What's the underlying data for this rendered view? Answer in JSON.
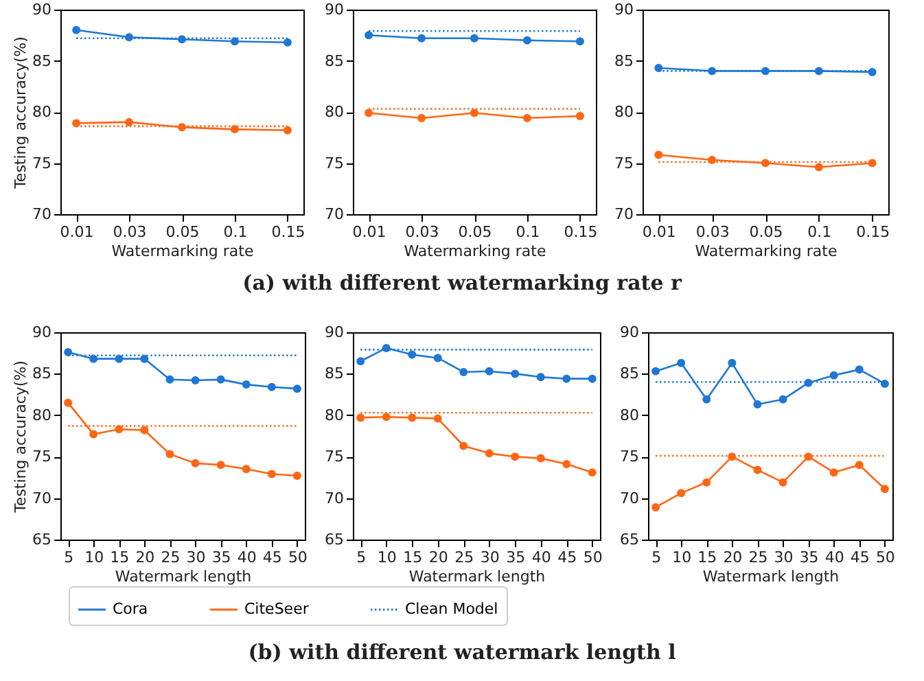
{
  "chart_data": [
    {
      "type": "line",
      "categories": [
        "0.01",
        "0.03",
        "0.05",
        "0.1",
        "0.15"
      ],
      "xlabel": "Watermarking rate",
      "ylabel": "Testing accuracy(%)",
      "ylim": [
        70,
        90
      ],
      "yticks": [
        70,
        75,
        80,
        85,
        90
      ],
      "legend": false,
      "annotations": [
        "(a) with different watermarking rate r"
      ],
      "series": [
        {
          "color": "#1f77d4",
          "marker": "circle",
          "line_style": "solid",
          "values": [
            88.0,
            87.3,
            87.1,
            86.9,
            86.8
          ]
        },
        {
          "color": "#ff6614",
          "marker": "circle",
          "line_style": "solid",
          "values": [
            78.9,
            79.0,
            78.5,
            78.3,
            78.2
          ]
        },
        {
          "color": "#1f77d4",
          "marker": "none",
          "line_style": "dotted",
          "values": [
            87.2,
            87.2,
            87.2,
            87.2,
            87.2
          ]
        },
        {
          "color": "#ff6614",
          "marker": "none",
          "line_style": "dotted",
          "values": [
            78.6,
            78.6,
            78.6,
            78.6,
            78.6
          ]
        }
      ]
    },
    {
      "type": "line",
      "categories": [
        "0.01",
        "0.03",
        "0.05",
        "0.1",
        "0.15"
      ],
      "xlabel": "Watermarking rate",
      "ylim": [
        70,
        90
      ],
      "yticks": [
        70,
        75,
        80,
        85,
        90
      ],
      "legend": false,
      "series": [
        {
          "color": "#1f77d4",
          "marker": "circle",
          "line_style": "solid",
          "values": [
            87.5,
            87.2,
            87.2,
            87.0,
            86.9
          ]
        },
        {
          "color": "#ff6614",
          "marker": "circle",
          "line_style": "solid",
          "values": [
            79.9,
            79.4,
            79.9,
            79.4,
            79.6
          ]
        },
        {
          "color": "#1f77d4",
          "marker": "none",
          "line_style": "dotted",
          "values": [
            87.9,
            87.9,
            87.9,
            87.9,
            87.9
          ]
        },
        {
          "color": "#ff6614",
          "marker": "none",
          "line_style": "dotted",
          "values": [
            80.3,
            80.3,
            80.3,
            80.3,
            80.3
          ]
        }
      ]
    },
    {
      "type": "line",
      "categories": [
        "0.01",
        "0.03",
        "0.05",
        "0.1",
        "0.15"
      ],
      "xlabel": "Watermarking rate",
      "ylim": [
        70,
        90
      ],
      "yticks": [
        70,
        75,
        80,
        85,
        90
      ],
      "legend": false,
      "series": [
        {
          "color": "#1f77d4",
          "marker": "circle",
          "line_style": "solid",
          "values": [
            84.3,
            84.0,
            84.0,
            84.0,
            83.9
          ]
        },
        {
          "color": "#ff6614",
          "marker": "circle",
          "line_style": "solid",
          "values": [
            75.8,
            75.3,
            75.0,
            74.6,
            75.0
          ]
        },
        {
          "color": "#1f77d4",
          "marker": "none",
          "line_style": "dotted",
          "values": [
            84.0,
            84.0,
            84.0,
            84.0,
            84.0
          ]
        },
        {
          "color": "#ff6614",
          "marker": "none",
          "line_style": "dotted",
          "values": [
            75.1,
            75.1,
            75.1,
            75.1,
            75.1
          ]
        }
      ]
    },
    {
      "type": "line",
      "categories": [
        "5",
        "10",
        "15",
        "20",
        "25",
        "30",
        "35",
        "40",
        "45",
        "50"
      ],
      "xlabel": "Watermark length",
      "ylabel": "Testing accuracy(%)",
      "ylim": [
        65,
        90
      ],
      "yticks": [
        65,
        70,
        75,
        80,
        85,
        90
      ],
      "legend": "bottom",
      "annotations": [
        "(b) with different watermark length l"
      ],
      "series": [
        {
          "name": "Cora",
          "color": "#1f77d4",
          "marker": "circle",
          "line_style": "solid",
          "values": [
            87.6,
            86.8,
            86.8,
            86.8,
            84.3,
            84.2,
            84.3,
            83.7,
            83.4,
            83.2
          ]
        },
        {
          "name": "CiteSeer",
          "color": "#ff6614",
          "marker": "circle",
          "line_style": "solid",
          "values": [
            81.5,
            77.7,
            78.3,
            78.2,
            75.3,
            74.2,
            74.0,
            73.5,
            72.9,
            72.7
          ]
        },
        {
          "name": "Clean Model",
          "color": "#1f77d4",
          "marker": "none",
          "line_style": "dotted",
          "values": [
            87.2,
            87.2,
            87.2,
            87.2,
            87.2,
            87.2,
            87.2,
            87.2,
            87.2,
            87.2
          ]
        },
        {
          "color": "#ff6614",
          "marker": "none",
          "line_style": "dotted",
          "values": [
            78.7,
            78.7,
            78.7,
            78.7,
            78.7,
            78.7,
            78.7,
            78.7,
            78.7,
            78.7
          ]
        }
      ]
    },
    {
      "type": "line",
      "categories": [
        "5",
        "10",
        "15",
        "20",
        "25",
        "30",
        "35",
        "40",
        "45",
        "50"
      ],
      "xlabel": "Watermark length",
      "ylim": [
        65,
        90
      ],
      "yticks": [
        65,
        70,
        75,
        80,
        85,
        90
      ],
      "legend": false,
      "series": [
        {
          "color": "#1f77d4",
          "marker": "circle",
          "line_style": "solid",
          "values": [
            86.5,
            88.1,
            87.3,
            86.9,
            85.2,
            85.3,
            85.0,
            84.6,
            84.4,
            84.4
          ]
        },
        {
          "color": "#ff6614",
          "marker": "circle",
          "line_style": "solid",
          "values": [
            79.7,
            79.8,
            79.7,
            79.6,
            76.3,
            75.4,
            75.0,
            74.8,
            74.1,
            73.1
          ]
        },
        {
          "color": "#1f77d4",
          "marker": "none",
          "line_style": "dotted",
          "values": [
            87.9,
            87.9,
            87.9,
            87.9,
            87.9,
            87.9,
            87.9,
            87.9,
            87.9,
            87.9
          ]
        },
        {
          "color": "#ff6614",
          "marker": "none",
          "line_style": "dotted",
          "values": [
            80.3,
            80.3,
            80.3,
            80.3,
            80.3,
            80.3,
            80.3,
            80.3,
            80.3,
            80.3
          ]
        }
      ]
    },
    {
      "type": "line",
      "categories": [
        "5",
        "10",
        "15",
        "20",
        "25",
        "30",
        "35",
        "40",
        "45",
        "50"
      ],
      "xlabel": "Watermark length",
      "ylim": [
        65,
        90
      ],
      "yticks": [
        65,
        70,
        75,
        80,
        85,
        90
      ],
      "legend": false,
      "series": [
        {
          "color": "#1f77d4",
          "marker": "circle",
          "line_style": "solid",
          "values": [
            85.3,
            86.3,
            81.9,
            86.3,
            81.3,
            81.9,
            83.9,
            84.8,
            85.5,
            83.8
          ]
        },
        {
          "color": "#ff6614",
          "marker": "circle",
          "line_style": "solid",
          "values": [
            68.9,
            70.6,
            71.9,
            75.0,
            73.4,
            71.9,
            75.0,
            73.1,
            74.0,
            71.1
          ]
        },
        {
          "color": "#1f77d4",
          "marker": "none",
          "line_style": "dotted",
          "values": [
            84.0,
            84.0,
            84.0,
            84.0,
            84.0,
            84.0,
            84.0,
            84.0,
            84.0,
            84.0
          ]
        },
        {
          "color": "#ff6614",
          "marker": "none",
          "line_style": "dotted",
          "values": [
            75.1,
            75.1,
            75.1,
            75.1,
            75.1,
            75.1,
            75.1,
            75.1,
            75.1,
            75.1
          ]
        }
      ]
    }
  ]
}
